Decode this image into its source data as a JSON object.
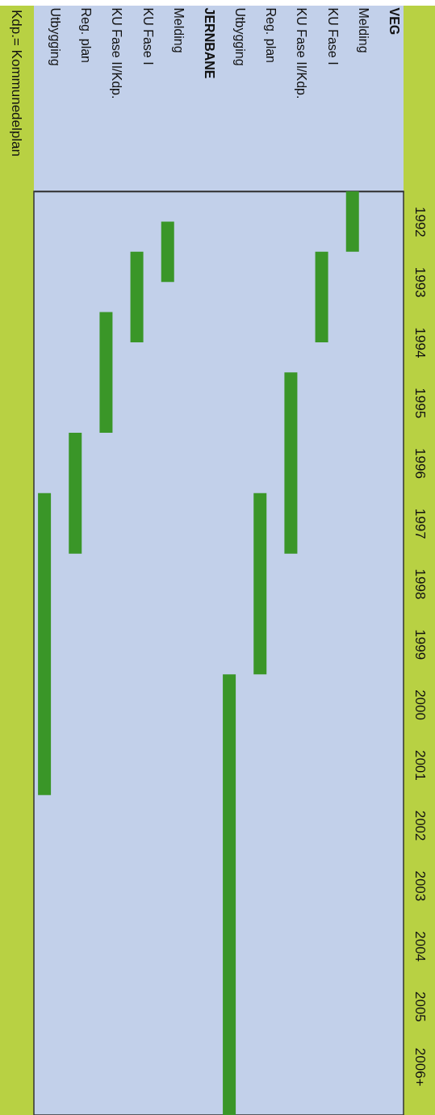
{
  "chart_data": {
    "type": "bar",
    "categories": [
      "Utbygging",
      "Reg. plan",
      "KU Fase II/Kdp.",
      "KU Fase I",
      "Melding",
      "JERNBANE",
      "Utbygging",
      "Reg. plan",
      "KU Fase II/Kdp.",
      "KU Fase I",
      "Melding",
      "VEG"
    ],
    "base": [
      1997,
      1996,
      1994,
      1993,
      1992.5,
      null,
      2000,
      1997,
      1995,
      1993,
      1992,
      null
    ],
    "values": [
      5,
      2,
      2,
      1.5,
      1,
      null,
      7.3,
      3,
      3,
      1.5,
      1,
      null
    ],
    "color": "#3a9628",
    "ylim": [
      2007.3,
      1992
    ],
    "yticks": [
      {
        "value": 1992.5,
        "label": "1992"
      },
      {
        "value": 1993.5,
        "label": "1993"
      },
      {
        "value": 1994.5,
        "label": "1994"
      },
      {
        "value": 1995.5,
        "label": "1995"
      },
      {
        "value": 1996.5,
        "label": "1996"
      },
      {
        "value": 1997.5,
        "label": "1997"
      },
      {
        "value": 1998.5,
        "label": "1998"
      },
      {
        "value": 1999.5,
        "label": "1999"
      },
      {
        "value": 2000.5,
        "label": "2000"
      },
      {
        "value": 2001.5,
        "label": "2001"
      },
      {
        "value": 2002.5,
        "label": "2002"
      },
      {
        "value": 2003.5,
        "label": "2003"
      },
      {
        "value": 2004.5,
        "label": "2004"
      },
      {
        "value": 2005.5,
        "label": "2005"
      },
      {
        "value": 2006.5,
        "label": "2006+"
      }
    ],
    "annotations": [
      "Kdp.= Kommunedelplan"
    ]
  }
}
